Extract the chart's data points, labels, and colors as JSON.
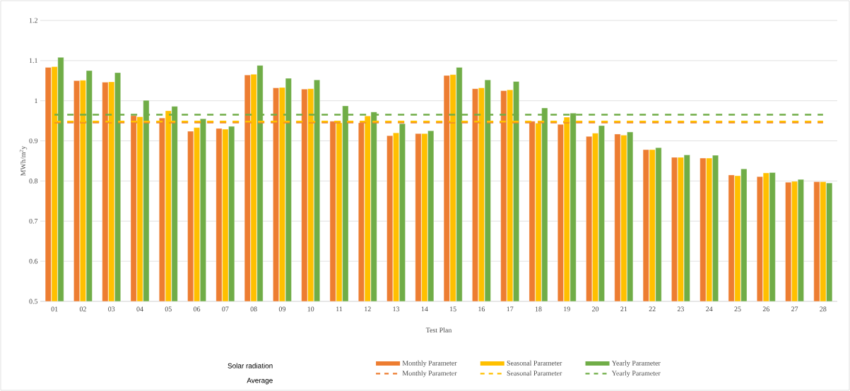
{
  "chart_data": {
    "type": "bar",
    "xlabel": "Test Plan",
    "ylabel": "MWh/m$^{2}$y",
    "categories": [
      "01",
      "02",
      "03",
      "04",
      "05",
      "06",
      "07",
      "08",
      "09",
      "10",
      "11",
      "12",
      "13",
      "14",
      "15",
      "16",
      "17",
      "18",
      "19",
      "20",
      "21",
      "22",
      "23",
      "24",
      "25",
      "26",
      "27",
      "28"
    ],
    "series": [
      {
        "name": "Monthly Parameter",
        "color": "#ed7d31",
        "values": [
          1.083,
          1.05,
          1.046,
          0.963,
          0.957,
          0.924,
          0.931,
          1.064,
          1.032,
          1.029,
          0.949,
          0.945,
          0.913,
          0.918,
          1.063,
          1.03,
          1.025,
          0.949,
          0.941,
          0.911,
          0.917,
          0.878,
          0.859,
          0.857,
          0.815,
          0.811,
          0.797,
          0.798
        ]
      },
      {
        "name": "Seasonal Parameter",
        "color": "#ffc000",
        "values": [
          1.085,
          1.051,
          1.047,
          0.96,
          0.975,
          0.933,
          0.929,
          1.066,
          1.033,
          1.03,
          0.945,
          0.962,
          0.92,
          0.918,
          1.065,
          1.032,
          1.027,
          0.944,
          0.959,
          0.919,
          0.914,
          0.878,
          0.859,
          0.857,
          0.813,
          0.82,
          0.799,
          0.798
        ]
      },
      {
        "name": "Yearly Parameter",
        "color": "#70ad47",
        "values": [
          1.108,
          1.075,
          1.07,
          1.001,
          0.986,
          0.955,
          0.936,
          1.088,
          1.056,
          1.052,
          0.987,
          0.972,
          0.943,
          0.925,
          1.083,
          1.052,
          1.048,
          0.982,
          0.969,
          0.938,
          0.922,
          0.883,
          0.865,
          0.864,
          0.83,
          0.821,
          0.804,
          0.795
        ]
      },
      {
        "name": "Monthly Parameter",
        "color": "#ed7d31",
        "type": "line",
        "line_style": "dashed",
        "values": [
          0.946,
          0.946,
          0.946,
          0.946,
          0.946,
          0.946,
          0.946,
          0.946,
          0.946,
          0.946,
          0.946,
          0.946,
          0.946,
          0.946,
          0.946,
          0.946,
          0.946,
          0.946,
          0.946,
          0.946,
          0.946,
          0.946,
          0.946,
          0.946,
          0.946,
          0.946,
          0.946,
          0.946
        ]
      },
      {
        "name": "Seasonal Parameter",
        "color": "#ffc000",
        "type": "line",
        "line_style": "dashed",
        "values": [
          0.948,
          0.948,
          0.948,
          0.948,
          0.948,
          0.948,
          0.948,
          0.948,
          0.948,
          0.948,
          0.948,
          0.948,
          0.948,
          0.948,
          0.948,
          0.948,
          0.948,
          0.948,
          0.948,
          0.948,
          0.948,
          0.948,
          0.948,
          0.948,
          0.948,
          0.948,
          0.948,
          0.948
        ]
      },
      {
        "name": "Yearly Parameter",
        "color": "#70ad47",
        "type": "line",
        "line_style": "dashed",
        "values": [
          0.965,
          0.965,
          0.965,
          0.965,
          0.965,
          0.965,
          0.965,
          0.965,
          0.965,
          0.965,
          0.965,
          0.965,
          0.965,
          0.965,
          0.965,
          0.965,
          0.965,
          0.965,
          0.965,
          0.965,
          0.965,
          0.965,
          0.965,
          0.965,
          0.965,
          0.965,
          0.965,
          0.965
        ]
      }
    ],
    "ylim": [
      0.5,
      1.2
    ],
    "yticks": [
      0.5,
      0.6,
      0.7,
      0.8,
      0.9,
      1,
      1.1,
      1.2
    ],
    "grid": "y",
    "legend": "bottom",
    "marker": "none",
    "annotations": [
      "Solar radiation",
      "Average"
    ]
  }
}
